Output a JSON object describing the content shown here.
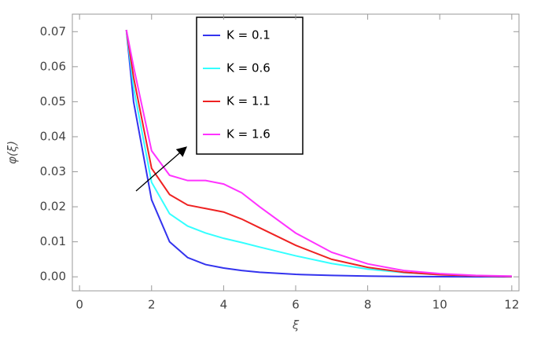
{
  "chart_data": {
    "type": "line",
    "xlabel": "ξ",
    "ylabel": "φ(ξ)",
    "x": [
      1.3,
      1.5,
      2,
      2.5,
      3,
      3.5,
      4,
      4.5,
      5,
      6,
      7,
      8,
      9,
      10,
      11,
      12
    ],
    "series": [
      {
        "name": "K = 0.1",
        "color": "#3333ee",
        "values": [
          0.0705,
          0.05,
          0.022,
          0.01,
          0.0055,
          0.0035,
          0.0025,
          0.0018,
          0.0013,
          0.0007,
          0.0004,
          0.0002,
          0.0001,
          5e-05,
          0,
          0
        ]
      },
      {
        "name": "K = 0.6",
        "color": "#33ffff",
        "values": [
          0.0705,
          0.054,
          0.027,
          0.018,
          0.0145,
          0.0125,
          0.011,
          0.0098,
          0.0085,
          0.006,
          0.0038,
          0.0022,
          0.0012,
          0.0006,
          0.0003,
          0.0001
        ]
      },
      {
        "name": "K = 1.1",
        "color": "#ee2222",
        "values": [
          0.0705,
          0.057,
          0.031,
          0.0235,
          0.0205,
          0.0195,
          0.0185,
          0.0165,
          0.014,
          0.009,
          0.005,
          0.0027,
          0.0013,
          0.0006,
          0.0003,
          0.0001
        ]
      },
      {
        "name": "K = 1.6",
        "color": "#ff33ff",
        "values": [
          0.0705,
          0.06,
          0.036,
          0.029,
          0.0275,
          0.0275,
          0.0265,
          0.024,
          0.02,
          0.0125,
          0.007,
          0.0037,
          0.0018,
          0.0009,
          0.0004,
          0.0002
        ]
      }
    ],
    "xlim": [
      -0.2,
      12.2
    ],
    "xticks": [
      0,
      2,
      4,
      6,
      8,
      10,
      12
    ],
    "ylim": [
      -0.004,
      0.075
    ],
    "yticks": [
      {
        "value": 0,
        "label": "0.00"
      },
      0.01,
      0.02,
      0.03,
      0.04,
      0.05,
      0.06,
      0.07
    ]
  }
}
